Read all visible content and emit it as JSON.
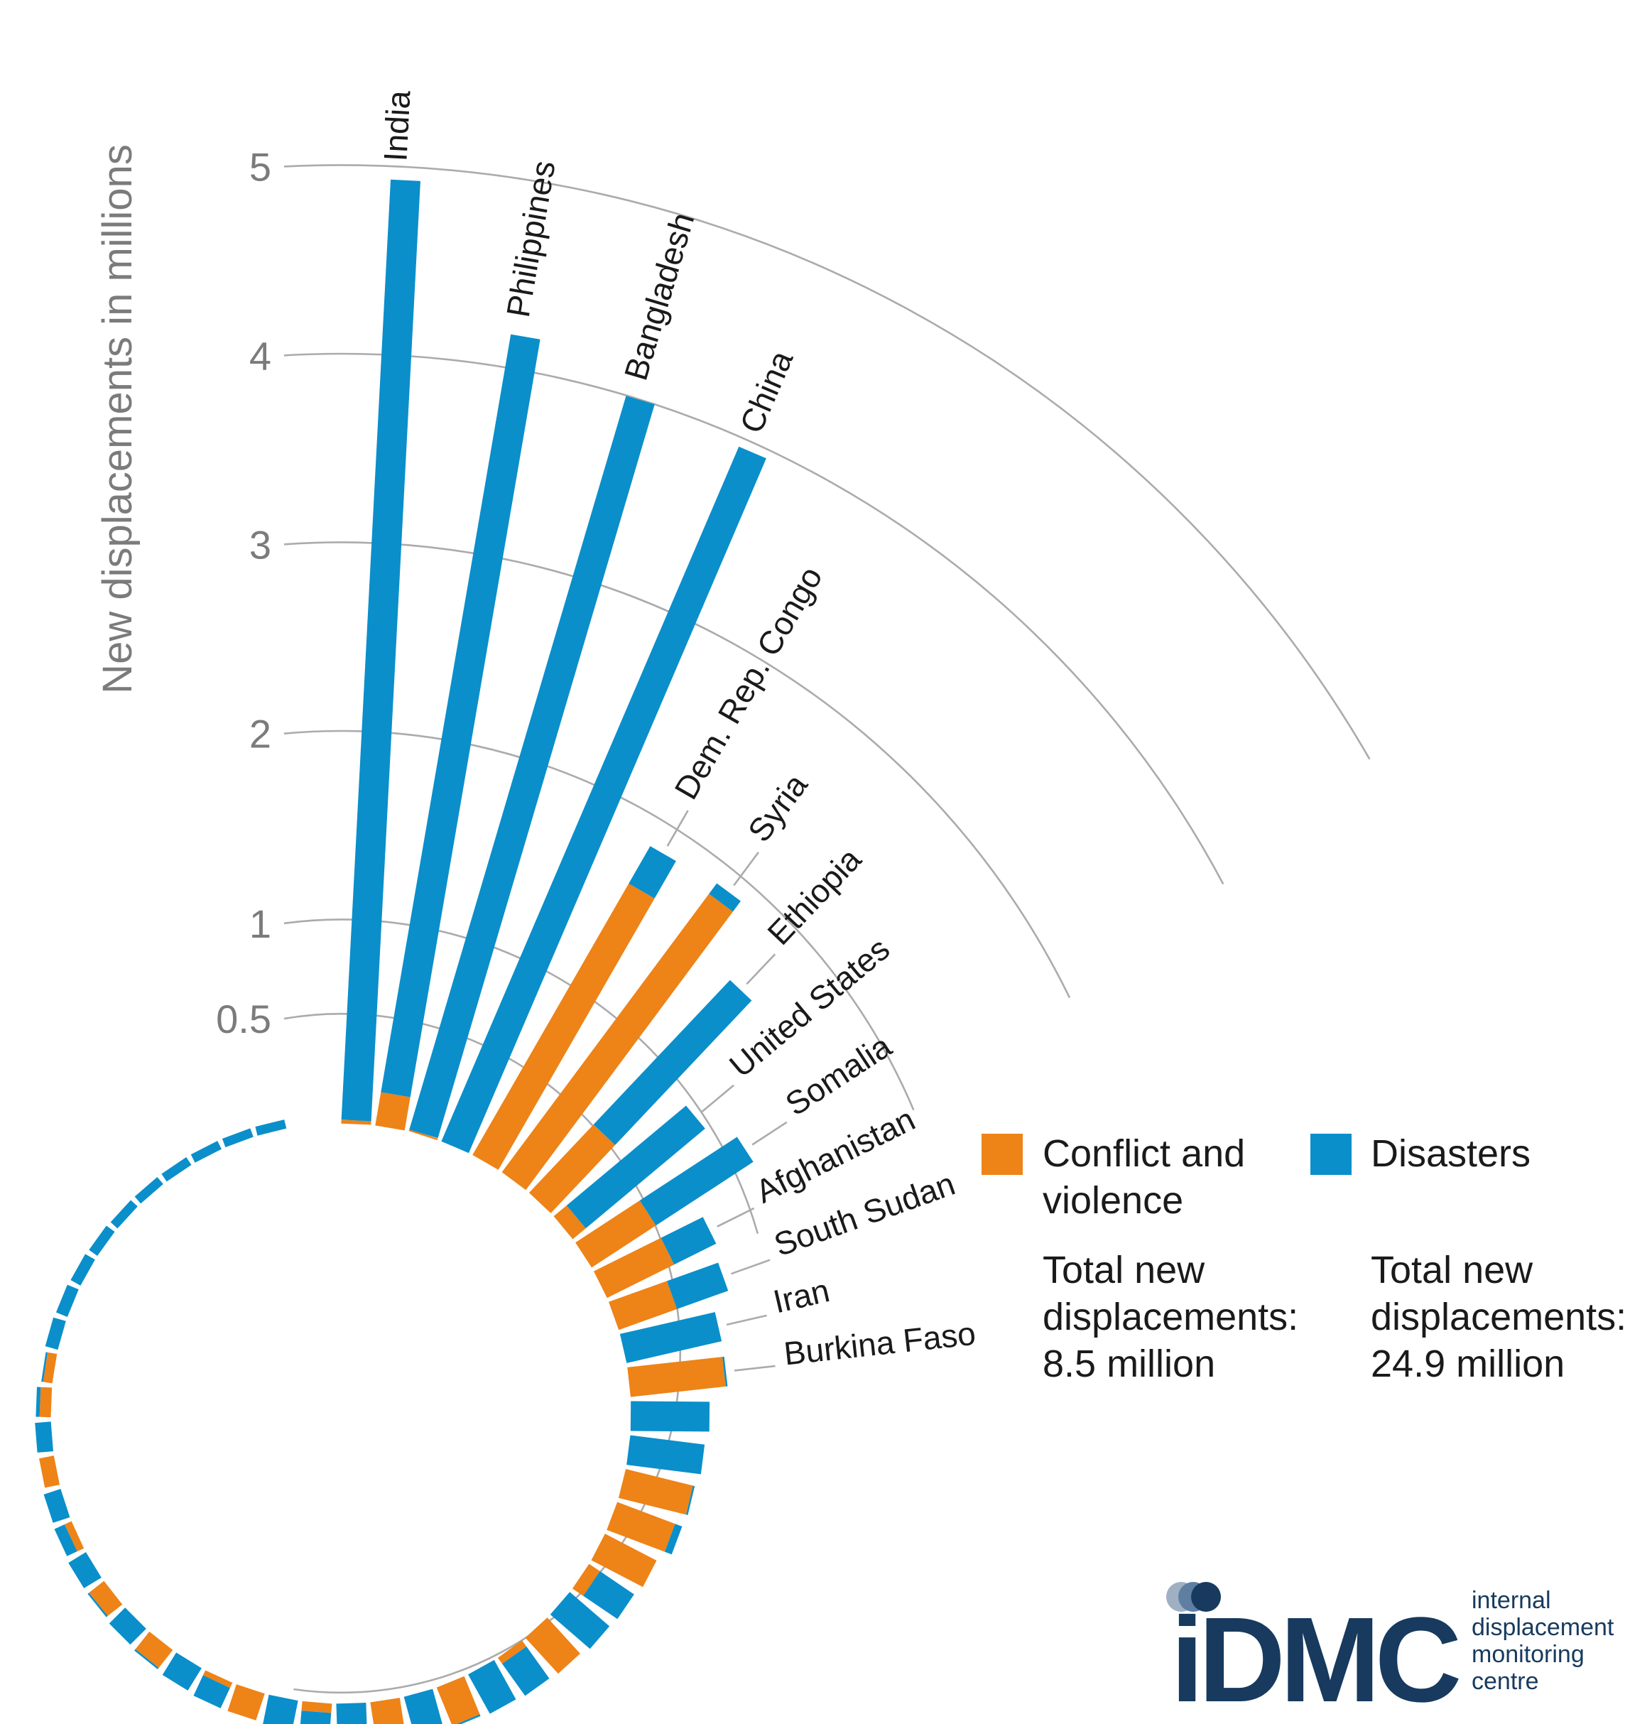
{
  "chart_data": {
    "type": "bar",
    "subtype": "radial-stacked-bar",
    "title": "",
    "axis": {
      "label": "New displacements in millions",
      "ticks": [
        {
          "label": "5",
          "value": 5,
          "end_angle": 60
        },
        {
          "label": "4",
          "value": 4,
          "end_angle": 62
        },
        {
          "label": "3",
          "value": 3,
          "end_angle": 64
        },
        {
          "label": "2",
          "value": 2,
          "end_angle": 67
        },
        {
          "label": "1",
          "value": 1,
          "end_angle": 74
        },
        {
          "label": "0.5",
          "value": 0.5,
          "end_angle": 188
        }
      ],
      "range": [
        0,
        5
      ]
    },
    "series": [
      {
        "name": "Conflict and violence",
        "key": "conflict",
        "color": "#EE8317"
      },
      {
        "name": "Disasters",
        "key": "disasters",
        "color": "#0A8FCB"
      }
    ],
    "countries": [
      {
        "name": "India",
        "conflict": 0.02,
        "disasters": 5.02
      },
      {
        "name": "Philippines",
        "conflict": 0.18,
        "disasters": 4.1
      },
      {
        "name": "Bangladesh",
        "conflict": 0.01,
        "disasters": 4.08
      },
      {
        "name": "China",
        "conflict": 0.0,
        "disasters": 4.03
      },
      {
        "name": "Dem. Rep. Congo",
        "conflict": 1.67,
        "disasters": 0.23
      },
      {
        "name": "Syria",
        "conflict": 1.85,
        "disasters": 0.07
      },
      {
        "name": "Ethiopia",
        "conflict": 0.5,
        "disasters": 1.06
      },
      {
        "name": "United States",
        "conflict": 0.09,
        "disasters": 0.83
      },
      {
        "name": "Somalia",
        "conflict": 0.41,
        "disasters": 0.62
      },
      {
        "name": "Afghanistan",
        "conflict": 0.4,
        "disasters": 0.25
      },
      {
        "name": "South Sudan",
        "conflict": 0.33,
        "disasters": 0.29
      },
      {
        "name": "Iran",
        "conflict": 0.0,
        "disasters": 0.52
      },
      {
        "name": "Burkina Faso",
        "conflict": 0.51,
        "disasters": 0.01
      }
    ],
    "unlabeled_bars": [
      {
        "conflict": 0.0,
        "disasters": 0.42
      },
      {
        "conflict": 0.0,
        "disasters": 0.4
      },
      {
        "conflict": 0.37,
        "disasters": 0.01
      },
      {
        "conflict": 0.33,
        "disasters": 0.04
      },
      {
        "conflict": 0.31,
        "disasters": 0.0
      },
      {
        "conflict": 0.07,
        "disasters": 0.22
      },
      {
        "conflict": 0.0,
        "disasters": 0.28
      },
      {
        "conflict": 0.26,
        "disasters": 0.0
      },
      {
        "conflict": 0.04,
        "disasters": 0.21
      },
      {
        "conflict": 0.0,
        "disasters": 0.24
      },
      {
        "conflict": 0.22,
        "disasters": 0.01
      },
      {
        "conflict": 0.0,
        "disasters": 0.22
      },
      {
        "conflict": 0.19,
        "disasters": 0.02
      },
      {
        "conflict": 0.0,
        "disasters": 0.2
      },
      {
        "conflict": 0.05,
        "disasters": 0.13
      },
      {
        "conflict": 0.0,
        "disasters": 0.17
      },
      {
        "conflict": 0.15,
        "disasters": 0.0
      },
      {
        "conflict": 0.03,
        "disasters": 0.12
      },
      {
        "conflict": 0.0,
        "disasters": 0.14
      },
      {
        "conflict": 0.12,
        "disasters": 0.01
      },
      {
        "conflict": 0.0,
        "disasters": 0.12
      },
      {
        "conflict": 0.1,
        "disasters": 0.01
      },
      {
        "conflict": 0.0,
        "disasters": 0.11
      },
      {
        "conflict": 0.04,
        "disasters": 0.06
      },
      {
        "conflict": 0.0,
        "disasters": 0.095
      },
      {
        "conflict": 0.08,
        "disasters": 0.0
      },
      {
        "conflict": 0.0,
        "disasters": 0.085
      },
      {
        "conflict": 0.06,
        "disasters": 0.02
      },
      {
        "conflict": 0.05,
        "disasters": 0.01
      },
      {
        "conflict": 0.0,
        "disasters": 0.07
      },
      {
        "conflict": 0.0,
        "disasters": 0.065
      },
      {
        "conflict": 0.0,
        "disasters": 0.06
      },
      {
        "conflict": 0.0,
        "disasters": 0.055
      },
      {
        "conflict": 0.0,
        "disasters": 0.05
      },
      {
        "conflict": 0.0,
        "disasters": 0.045
      },
      {
        "conflict": 0.0,
        "disasters": 0.04
      },
      {
        "conflict": 0.0,
        "disasters": 0.037
      },
      {
        "conflict": 0.0,
        "disasters": 0.034
      },
      {
        "conflict": 0.0,
        "disasters": 0.03
      }
    ],
    "colors": {
      "conflict": "#EE8317",
      "disasters": "#0A8FCB",
      "gridline": "#ABABAB",
      "axis_text": "#7B7B7B",
      "label_text": "#1A1A1A"
    },
    "legend_position": "right"
  },
  "legend": {
    "conflict": {
      "line1": "Conflict and",
      "line2": "violence"
    },
    "disasters": {
      "line1": "Disasters"
    }
  },
  "totals": {
    "conflict": [
      "Total new",
      "displacements:",
      "8.5 million"
    ],
    "disasters": [
      "Total new",
      "displacements:",
      "24.9 million"
    ]
  },
  "logo": {
    "wordmark": "iDMC",
    "lines": [
      "internal",
      "displacement",
      "monitoring",
      "centre"
    ],
    "navy": "#173A5E",
    "dot_light": "#9FB0C3",
    "dot_mid": "#5E7FA1"
  }
}
